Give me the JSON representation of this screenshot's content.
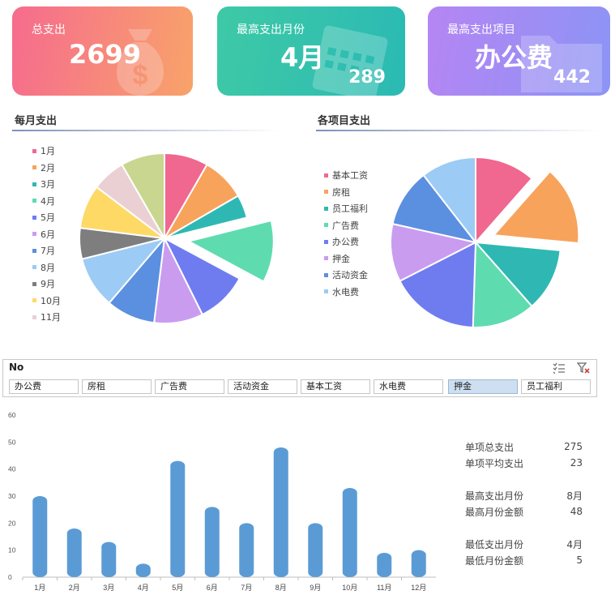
{
  "cards": {
    "total": {
      "title": "总支出",
      "value": "2699"
    },
    "max_month": {
      "title": "最高支出月份",
      "value": "4月",
      "sub": "289"
    },
    "max_item": {
      "title": "最高支出项目",
      "value": "办公费",
      "sub": "442"
    }
  },
  "monthly_pie": {
    "title": "每月支出",
    "legend": [
      "1月",
      "2月",
      "3月",
      "4月",
      "5月",
      "6月",
      "7月",
      "8月",
      "9月",
      "10月",
      "11月"
    ],
    "colors": [
      "#f0678f",
      "#f7a35c",
      "#2fb8b3",
      "#5fdbb0",
      "#6f7cf0",
      "#c99cf0",
      "#5b8fe0",
      "#9ccbf5",
      "#7e7e7e",
      "#ffd966",
      "#ead0d3",
      "#c8d68f"
    ]
  },
  "item_pie": {
    "title": "各项目支出",
    "legend": [
      "基本工资",
      "房租",
      "员工福利",
      "广告费",
      "办公费",
      "押金",
      "活动资金",
      "水电费"
    ],
    "legend_colors": [
      "#f0678f",
      "#f7a35c",
      "#2fb8b3",
      "#5fdbb0",
      "#6f7cf0",
      "#c99cf0",
      "#5b8fe0",
      "#9ccbf5"
    ],
    "colors": [
      "#f0678f",
      "#f7a35c",
      "#2fb8b3",
      "#5fdbb0",
      "#6f7cf0",
      "#c99cf0",
      "#5b8fe0",
      "#9ccbf5"
    ]
  },
  "slicer": {
    "header": "No",
    "items": [
      "办公费",
      "房租",
      "广告费",
      "活动资金",
      "基本工资",
      "水电费",
      "押金",
      "员工福利"
    ],
    "selected": "押金"
  },
  "stats": {
    "total_label": "单项总支出",
    "total_value": "275",
    "avg_label": "单项平均支出",
    "avg_value": "23",
    "max_month_label": "最高支出月份",
    "max_month_value": "8月",
    "max_amount_label": "最高月份金额",
    "max_amount_value": "48",
    "min_month_label": "最低支出月份",
    "min_month_value": "4月",
    "min_amount_label": "最低月份金额",
    "min_amount_value": "5"
  },
  "chart_data": [
    {
      "type": "pie",
      "title": "每月支出",
      "categories": [
        "1月",
        "2月",
        "3月",
        "4月",
        "5月",
        "6月",
        "7月",
        "8月",
        "9月",
        "10月",
        "11月",
        "12月"
      ],
      "values": [
        8.5,
        8.5,
        4.5,
        12,
        10,
        9.5,
        9.5,
        10,
        6,
        8.5,
        6.5,
        8.5
      ],
      "exploded": "4月"
    },
    {
      "type": "pie",
      "title": "各项目支出",
      "categories": [
        "基本工资",
        "房租",
        "员工福利",
        "广告费",
        "办公费",
        "押金",
        "活动资金",
        "水电费"
      ],
      "values": [
        11.5,
        15,
        12,
        12,
        17,
        11,
        11,
        10.5
      ],
      "exploded": "房租"
    },
    {
      "type": "bar",
      "categories": [
        "1月",
        "2月",
        "3月",
        "4月",
        "5月",
        "6月",
        "7月",
        "8月",
        "9月",
        "10月",
        "11月",
        "12月"
      ],
      "values": [
        30,
        18,
        13,
        5,
        43,
        26,
        20,
        48,
        20,
        33,
        9,
        10
      ],
      "ylim": [
        0,
        60
      ],
      "yticks": [
        0,
        10,
        20,
        30,
        40,
        50,
        60
      ],
      "bar_color": "#5b9bd5"
    }
  ]
}
